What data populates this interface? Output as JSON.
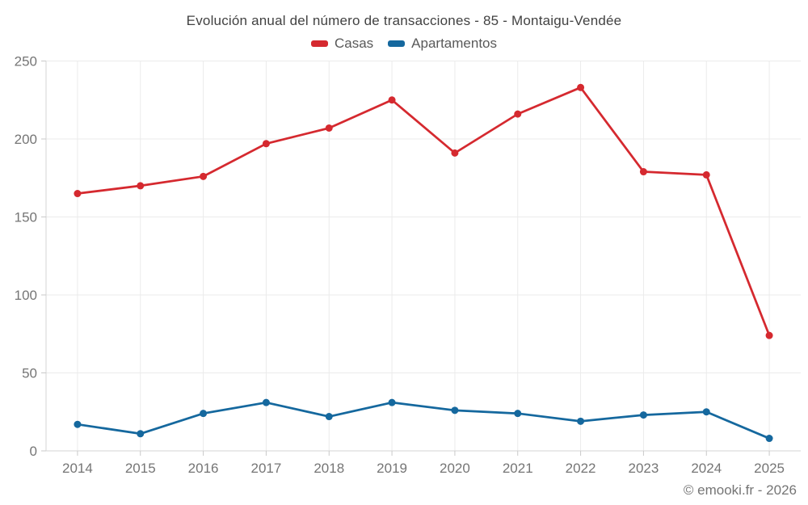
{
  "title": "Evolución anual del número de transacciones - 85 - Montaigu-Vendée",
  "legend": [
    {
      "label": "Casas",
      "color": "#d5292f"
    },
    {
      "label": "Apartamentos",
      "color": "#15689e"
    }
  ],
  "footer": "© emooki.fr - 2026",
  "colors": {
    "background": "#ffffff",
    "grid": "#ebebeb",
    "axis": "#d6d6d6",
    "tick": "#c9c9c9",
    "axis_label": "#757575",
    "title_text": "#424242",
    "legend_text": "#595959",
    "casas": "#d5292f",
    "apartamentos": "#15689e"
  },
  "chart_data": {
    "type": "line",
    "title": "Evolución anual del número de transacciones - 85 - Montaigu-Vendée",
    "categories": [
      "2014",
      "2015",
      "2016",
      "2017",
      "2018",
      "2019",
      "2020",
      "2021",
      "2022",
      "2023",
      "2024",
      "2025"
    ],
    "series": [
      {
        "name": "Casas",
        "color": "#d5292f",
        "values": [
          165,
          170,
          176,
          197,
          207,
          225,
          191,
          216,
          233,
          179,
          177,
          74
        ]
      },
      {
        "name": "Apartamentos",
        "color": "#15689e",
        "values": [
          17,
          11,
          24,
          31,
          22,
          31,
          26,
          24,
          19,
          23,
          25,
          8
        ]
      }
    ],
    "xlabel": "",
    "ylabel": "",
    "ylim": [
      0,
      250
    ],
    "yticks": [
      0,
      50,
      100,
      150,
      200,
      250
    ],
    "grid": true,
    "markers": true,
    "legend_position": "top"
  }
}
